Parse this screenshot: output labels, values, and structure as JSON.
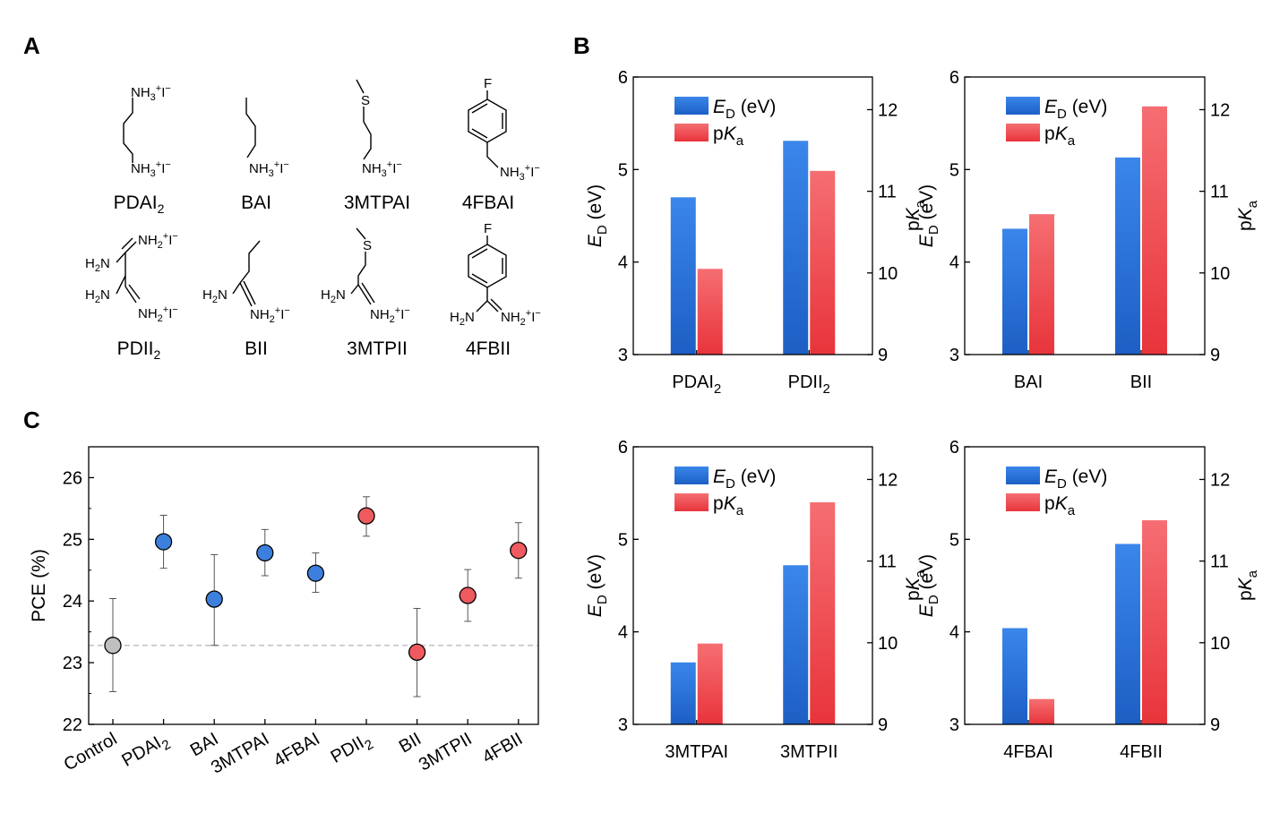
{
  "panels": {
    "a": "A",
    "b": "B",
    "c": "C"
  },
  "structures": [
    {
      "name": "PDAI",
      "sub": "2",
      "groups": [
        "NH3+I-",
        "NH3+I-"
      ]
    },
    {
      "name": "BAI",
      "sub": "",
      "groups": [
        "NH3+I-"
      ]
    },
    {
      "name": "3MTPAI",
      "sub": "",
      "groups": [
        "S",
        "NH3+I-"
      ]
    },
    {
      "name": "4FBAI",
      "sub": "",
      "groups": [
        "F",
        "NH3+I-"
      ]
    },
    {
      "name": "PDII",
      "sub": "2",
      "groups": [
        "NH2+I-",
        "H2N",
        "H2N",
        "NH2+I-"
      ]
    },
    {
      "name": "BII",
      "sub": "",
      "groups": [
        "H2N",
        "NH2+I-"
      ]
    },
    {
      "name": "3MTPII",
      "sub": "",
      "groups": [
        "S",
        "H2N",
        "NH2+I-"
      ]
    },
    {
      "name": "4FBII",
      "sub": "",
      "groups": [
        "F",
        "H2N",
        "NH2+I-"
      ]
    }
  ],
  "colors": {
    "ed_bar": "#2f7be0",
    "pka_bar": "#f0474d",
    "control_point": "#bfbfbf",
    "amine_point": "#3d7fdc",
    "imine_point": "#ee5a5f",
    "reference_line": "#bbbbbb"
  },
  "chart_data": [
    {
      "type": "bar",
      "panel": "B",
      "categories": [
        "PDAI2",
        "PDII2"
      ],
      "category_labels": [
        {
          "base": "PDAI",
          "sub": "2"
        },
        {
          "base": "PDII",
          "sub": "2"
        }
      ],
      "series": [
        {
          "name": "E_D (eV)",
          "axis": "left",
          "values": [
            4.7,
            5.31
          ]
        },
        {
          "name": "pKa",
          "axis": "right",
          "values": [
            10.05,
            11.25
          ]
        }
      ],
      "ylabel_left": {
        "main": "E",
        "sub": "D",
        "unit": " (eV)"
      },
      "ylabel_right": {
        "pre": "p",
        "main": "K",
        "sub": "a"
      },
      "ylim_left": [
        3,
        6
      ],
      "ylim_right": [
        9,
        12.4
      ],
      "yticks_left": [
        "3",
        "4",
        "5",
        "6"
      ],
      "yticks_right": [
        "9",
        "10",
        "11",
        "12"
      ],
      "legend": [
        {
          "main": "E",
          "sub": "D",
          "unit": " (eV)"
        },
        {
          "pre": "p",
          "main": "K",
          "sub": "a"
        }
      ],
      "legend_position": "top-left"
    },
    {
      "type": "bar",
      "panel": "B",
      "categories": [
        "BAI",
        "BII"
      ],
      "category_labels": [
        {
          "base": "BAI",
          "sub": ""
        },
        {
          "base": "BII",
          "sub": ""
        }
      ],
      "series": [
        {
          "name": "E_D (eV)",
          "axis": "left",
          "values": [
            4.36,
            5.13
          ]
        },
        {
          "name": "pKa",
          "axis": "right",
          "values": [
            10.72,
            12.04
          ]
        }
      ],
      "ylabel_left": {
        "main": "E",
        "sub": "D",
        "unit": " (eV)"
      },
      "ylabel_right": {
        "pre": "p",
        "main": "K",
        "sub": "a"
      },
      "ylim_left": [
        3,
        6
      ],
      "ylim_right": [
        9,
        12.4
      ],
      "yticks_left": [
        "3",
        "4",
        "5",
        "6"
      ],
      "yticks_right": [
        "9",
        "10",
        "11",
        "12"
      ],
      "legend": [
        {
          "main": "E",
          "sub": "D",
          "unit": " (eV)"
        },
        {
          "pre": "p",
          "main": "K",
          "sub": "a"
        }
      ],
      "legend_position": "top-left"
    },
    {
      "type": "bar",
      "panel": "B",
      "categories": [
        "3MTPAI",
        "3MTPII"
      ],
      "category_labels": [
        {
          "base": "3MTPAI",
          "sub": ""
        },
        {
          "base": "3MTPII",
          "sub": ""
        }
      ],
      "series": [
        {
          "name": "E_D (eV)",
          "axis": "left",
          "values": [
            3.67,
            4.72
          ]
        },
        {
          "name": "pKa",
          "axis": "right",
          "values": [
            9.99,
            11.72
          ]
        }
      ],
      "ylabel_left": {
        "main": "E",
        "sub": "D",
        "unit": " (eV)"
      },
      "ylabel_right": {
        "pre": "p",
        "main": "K",
        "sub": "a"
      },
      "ylim_left": [
        3,
        6
      ],
      "ylim_right": [
        9,
        12.4
      ],
      "yticks_left": [
        "3",
        "4",
        "5",
        "6"
      ],
      "yticks_right": [
        "9",
        "10",
        "11",
        "12"
      ],
      "legend": [
        {
          "main": "E",
          "sub": "D",
          "unit": " (eV)"
        },
        {
          "pre": "p",
          "main": "K",
          "sub": "a"
        }
      ],
      "legend_position": "top-left"
    },
    {
      "type": "bar",
      "panel": "B",
      "categories": [
        "4FBAI",
        "4FBII"
      ],
      "category_labels": [
        {
          "base": "4FBAI",
          "sub": ""
        },
        {
          "base": "4FBII",
          "sub": ""
        }
      ],
      "series": [
        {
          "name": "E_D (eV)",
          "axis": "left",
          "values": [
            4.04,
            4.95
          ]
        },
        {
          "name": "pKa",
          "axis": "right",
          "values": [
            9.31,
            11.5
          ]
        }
      ],
      "ylabel_left": {
        "main": "E",
        "sub": "D",
        "unit": " (eV)"
      },
      "ylabel_right": {
        "pre": "p",
        "main": "K",
        "sub": "a"
      },
      "ylim_left": [
        3,
        6
      ],
      "ylim_right": [
        9,
        12.4
      ],
      "yticks_left": [
        "3",
        "4",
        "5",
        "6"
      ],
      "yticks_right": [
        "9",
        "10",
        "11",
        "12"
      ],
      "legend": [
        {
          "main": "E",
          "sub": "D",
          "unit": " (eV)"
        },
        {
          "pre": "p",
          "main": "K",
          "sub": "a"
        }
      ],
      "legend_position": "top-left"
    },
    {
      "type": "scatter",
      "panel": "C",
      "categories": [
        "Control",
        "PDAI2",
        "BAI",
        "3MTPAI",
        "4FBAI",
        "PDII2",
        "BII",
        "3MTPII",
        "4FBII"
      ],
      "category_labels": [
        {
          "base": "Control",
          "sub": ""
        },
        {
          "base": "PDAI",
          "sub": "2"
        },
        {
          "base": "BAI",
          "sub": ""
        },
        {
          "base": "3MTPAI",
          "sub": ""
        },
        {
          "base": "4FBAI",
          "sub": ""
        },
        {
          "base": "PDII",
          "sub": "2"
        },
        {
          "base": "BII",
          "sub": ""
        },
        {
          "base": "3MTPII",
          "sub": ""
        },
        {
          "base": "4FBII",
          "sub": ""
        }
      ],
      "values": [
        23.28,
        24.96,
        24.03,
        24.78,
        24.45,
        25.38,
        23.17,
        24.09,
        24.82
      ],
      "error_low": [
        22.53,
        24.53,
        23.28,
        24.41,
        24.14,
        25.05,
        22.45,
        23.67,
        24.37
      ],
      "error_high": [
        24.04,
        25.39,
        24.75,
        25.16,
        24.78,
        25.69,
        23.88,
        24.51,
        25.27
      ],
      "groups": [
        "control",
        "amine",
        "amine",
        "amine",
        "amine",
        "imine",
        "imine",
        "imine",
        "imine"
      ],
      "reference_line": 23.28,
      "ylabel": "PCE (%)",
      "ylim": [
        22,
        26.5
      ],
      "yticks": [
        "22",
        "23",
        "24",
        "25",
        "26"
      ]
    }
  ]
}
